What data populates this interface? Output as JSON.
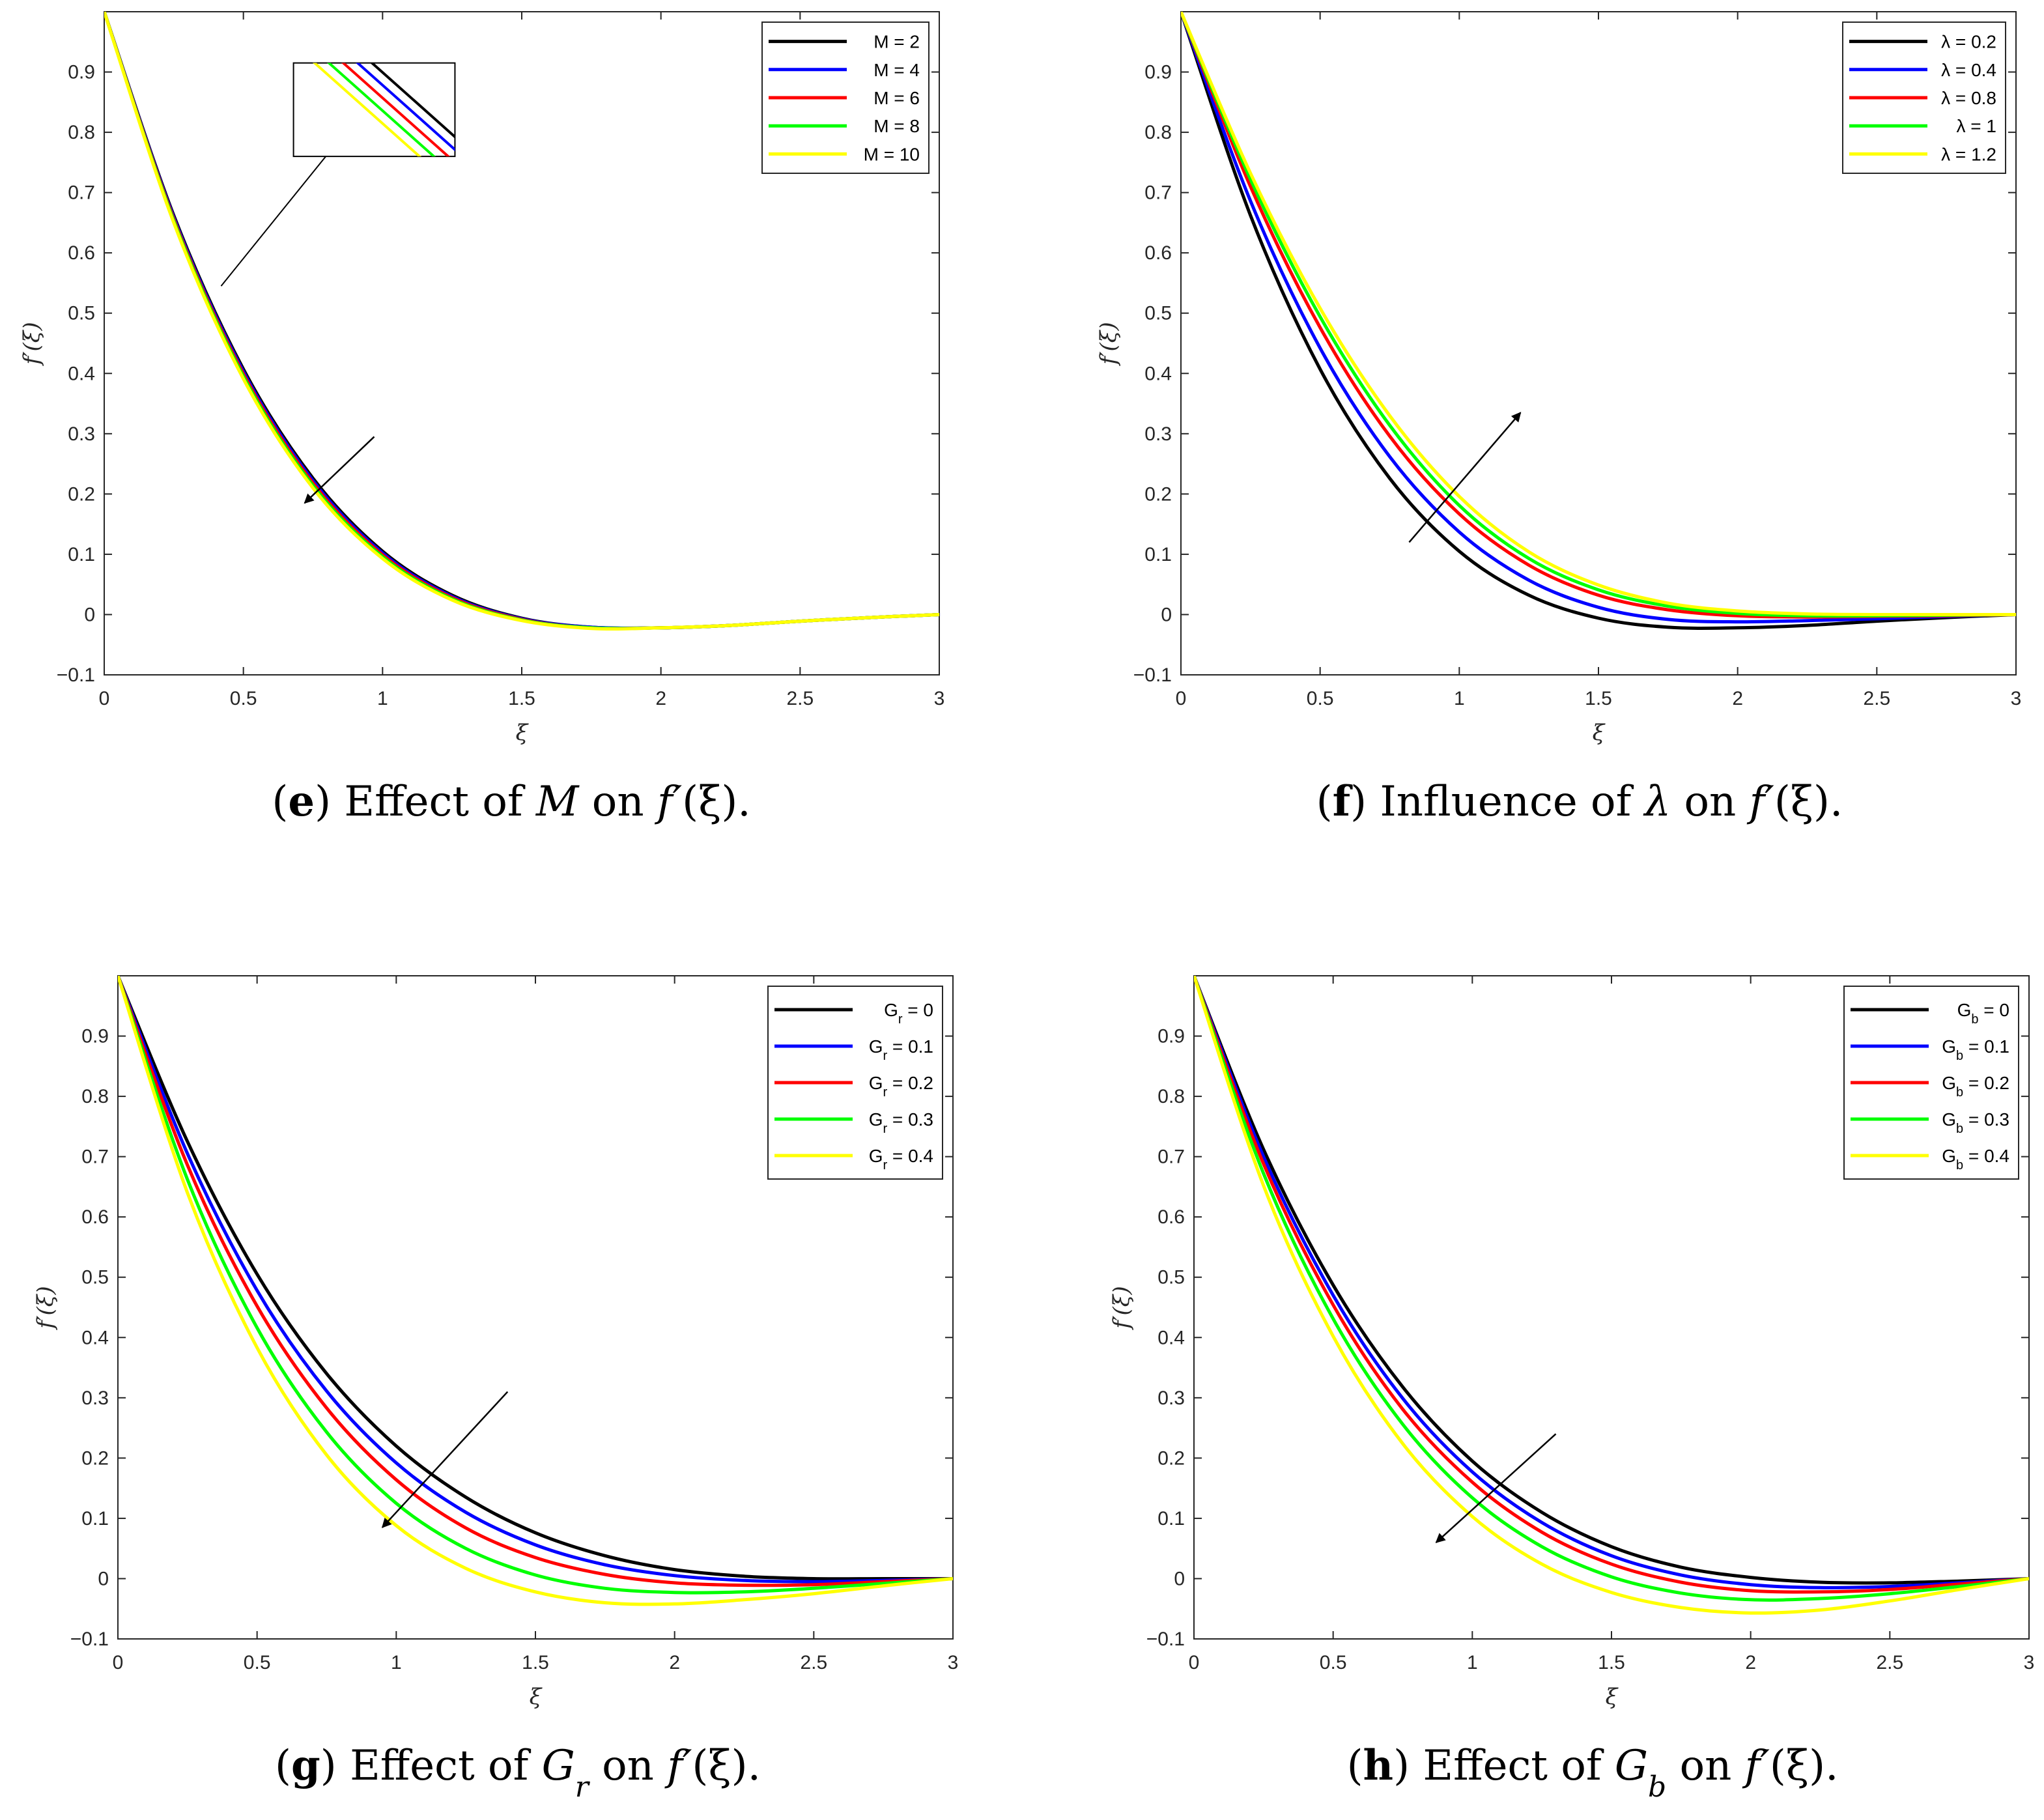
{
  "chart_data": [
    {
      "type": "line",
      "panel": "e",
      "caption": {
        "letter": "e",
        "pre": " Effect of ",
        "sym": "M",
        "sub": "",
        "post": " on ",
        "f": "f",
        "arg": "(ξ)."
      },
      "xlabel": "ξ",
      "ylabel": "f′(ξ)",
      "xlim": [
        0,
        3
      ],
      "ylim": [
        -0.1,
        1.0
      ],
      "xticks": [
        0,
        0.5,
        1,
        1.5,
        2,
        2.5,
        3
      ],
      "xtick_labels": [
        "0",
        "0.5",
        "1",
        "1.5",
        "2",
        "2.5",
        "3"
      ],
      "yticks": [
        -0.1,
        0,
        0.1,
        0.2,
        0.3,
        0.4,
        0.5,
        0.6,
        0.7,
        0.8,
        0.9
      ],
      "ytick_labels": [
        "−0.1",
        "0",
        "0.1",
        "0.2",
        "0.3",
        "0.4",
        "0.5",
        "0.6",
        "0.7",
        "0.8",
        "0.9"
      ],
      "legend_position": "top-right",
      "x": [
        0,
        0.25,
        0.5,
        0.75,
        1,
        1.25,
        1.5,
        1.75,
        2,
        2.25,
        2.5,
        2.75,
        3
      ],
      "series": [
        {
          "legend_sym": "M",
          "legend_sub": "",
          "legend_val": "=  2",
          "color": "#000000",
          "values": [
            1.0,
            0.662,
            0.407,
            0.226,
            0.105,
            0.032,
            -0.006,
            -0.021,
            -0.022,
            -0.018,
            -0.011,
            -0.005,
            0.0
          ]
        },
        {
          "legend_sym": "M",
          "legend_sub": "",
          "legend_val": "=  4",
          "color": "#0000ff",
          "values": [
            1.0,
            0.659,
            0.403,
            0.222,
            0.102,
            0.03,
            -0.007,
            -0.021,
            -0.022,
            -0.018,
            -0.011,
            -0.005,
            0.0
          ]
        },
        {
          "legend_sym": "M",
          "legend_sub": "",
          "legend_val": "=  6",
          "color": "#ff0000",
          "values": [
            1.0,
            0.656,
            0.399,
            0.218,
            0.099,
            0.028,
            -0.008,
            -0.022,
            -0.022,
            -0.018,
            -0.011,
            -0.005,
            0.0
          ]
        },
        {
          "legend_sym": "M",
          "legend_sub": "",
          "legend_val": "=  8",
          "color": "#00ff00",
          "values": [
            1.0,
            0.653,
            0.395,
            0.214,
            0.096,
            0.026,
            -0.009,
            -0.022,
            -0.022,
            -0.018,
            -0.011,
            -0.005,
            0.0
          ]
        },
        {
          "legend_sym": "M",
          "legend_sub": "",
          "legend_val": "= 10",
          "color": "#ffff00",
          "values": [
            1.0,
            0.65,
            0.391,
            0.21,
            0.093,
            0.024,
            -0.01,
            -0.023,
            -0.022,
            -0.018,
            -0.011,
            -0.005,
            0.0
          ]
        }
      ],
      "arrow": {
        "from": [
          0.97,
          0.295
        ],
        "to": [
          0.72,
          0.185
        ]
      },
      "zoom_inset": {
        "target": [
          0.42,
          0.545
        ],
        "xrange": [
          0.68,
          1.26
        ],
        "yrange": [
          0.76,
          0.915
        ]
      }
    },
    {
      "type": "line",
      "panel": "f",
      "caption": {
        "letter": "f",
        "pre": " Influence of ",
        "sym": "λ",
        "sub": "",
        "post": " on ",
        "f": "f",
        "arg": "(ξ)."
      },
      "xlabel": "ξ",
      "ylabel": "f′(ξ)",
      "xlim": [
        0,
        3
      ],
      "ylim": [
        -0.1,
        1.0
      ],
      "xticks": [
        0,
        0.5,
        1,
        1.5,
        2,
        2.5,
        3
      ],
      "xtick_labels": [
        "0",
        "0.5",
        "1",
        "1.5",
        "2",
        "2.5",
        "3"
      ],
      "yticks": [
        -0.1,
        0,
        0.1,
        0.2,
        0.3,
        0.4,
        0.5,
        0.6,
        0.7,
        0.8,
        0.9
      ],
      "ytick_labels": [
        "−0.1",
        "0",
        "0.1",
        "0.2",
        "0.3",
        "0.4",
        "0.5",
        "0.6",
        "0.7",
        "0.8",
        "0.9"
      ],
      "legend_position": "top-right",
      "x": [
        0,
        0.25,
        0.5,
        0.75,
        1,
        1.25,
        1.5,
        1.75,
        2,
        2.25,
        2.5,
        2.75,
        3
      ],
      "series": [
        {
          "legend_sym": "λ",
          "legend_sub": "",
          "legend_val": "= 0.2",
          "color": "#000000",
          "values": [
            1.0,
            0.662,
            0.407,
            0.226,
            0.105,
            0.032,
            -0.006,
            -0.021,
            -0.022,
            -0.018,
            -0.011,
            -0.005,
            0.0
          ]
        },
        {
          "legend_sym": "λ",
          "legend_sub": "",
          "legend_val": "= 0.4",
          "color": "#0000ff",
          "values": [
            1.0,
            0.686,
            0.442,
            0.262,
            0.137,
            0.057,
            0.012,
            -0.008,
            -0.012,
            -0.01,
            -0.007,
            -0.003,
            0.0
          ]
        },
        {
          "legend_sym": "λ",
          "legend_sub": "",
          "legend_val": "= 0.8",
          "color": "#ff0000",
          "values": [
            1.0,
            0.71,
            0.476,
            0.296,
            0.167,
            0.082,
            0.032,
            0.008,
            -0.002,
            -0.004,
            -0.003,
            -0.002,
            0.0
          ]
        },
        {
          "legend_sym": "λ",
          "legend_sub": "",
          "legend_val": "=   1",
          "color": "#00ff00",
          "values": [
            1.0,
            0.722,
            0.494,
            0.314,
            0.181,
            0.093,
            0.041,
            0.014,
            0.002,
            -0.002,
            -0.002,
            -0.001,
            0.0
          ]
        },
        {
          "legend_sym": "λ",
          "legend_sub": "",
          "legend_val": "= 1.2",
          "color": "#ffff00",
          "values": [
            1.0,
            0.732,
            0.508,
            0.33,
            0.196,
            0.104,
            0.049,
            0.019,
            0.006,
            0.001,
            0.0,
            0.0,
            0.0
          ]
        }
      ],
      "arrow": {
        "from": [
          0.82,
          0.12
        ],
        "to": [
          1.22,
          0.335
        ]
      }
    },
    {
      "type": "line",
      "panel": "g",
      "caption": {
        "letter": "g",
        "pre": " Effect of ",
        "sym": "G",
        "sub": "r",
        "post": " on ",
        "f": "f",
        "arg": "(ξ)."
      },
      "xlabel": "ξ",
      "ylabel": "f′(ξ)",
      "xlim": [
        0,
        3
      ],
      "ylim": [
        -0.1,
        1.0
      ],
      "xticks": [
        0,
        0.5,
        1,
        1.5,
        2,
        2.5,
        3
      ],
      "xtick_labels": [
        "0",
        "0.5",
        "1",
        "1.5",
        "2",
        "2.5",
        "3"
      ],
      "yticks": [
        -0.1,
        0,
        0.1,
        0.2,
        0.3,
        0.4,
        0.5,
        0.6,
        0.7,
        0.8,
        0.9
      ],
      "ytick_labels": [
        "−0.1",
        "0",
        "0.1",
        "0.2",
        "0.3",
        "0.4",
        "0.5",
        "0.6",
        "0.7",
        "0.8",
        "0.9"
      ],
      "legend_position": "top-right",
      "x": [
        0,
        0.25,
        0.5,
        0.75,
        1,
        1.25,
        1.5,
        1.75,
        2,
        2.25,
        2.5,
        2.75,
        3
      ],
      "series": [
        {
          "legend_sym": "G",
          "legend_sub": "r",
          "legend_val": "=   0",
          "color": "#000000",
          "values": [
            1.0,
            0.725,
            0.505,
            0.34,
            0.22,
            0.135,
            0.076,
            0.038,
            0.015,
            0.004,
            0.0,
            0.0,
            0.0
          ]
        },
        {
          "legend_sym": "G",
          "legend_sub": "r",
          "legend_val": "= 0.1",
          "color": "#0000ff",
          "values": [
            1.0,
            0.705,
            0.478,
            0.311,
            0.192,
            0.11,
            0.056,
            0.023,
            0.005,
            -0.003,
            -0.005,
            -0.003,
            0.0
          ]
        },
        {
          "legend_sym": "G",
          "legend_sub": "r",
          "legend_val": "= 0.2",
          "color": "#ff0000",
          "values": [
            1.0,
            0.686,
            0.452,
            0.283,
            0.164,
            0.084,
            0.035,
            0.007,
            -0.007,
            -0.011,
            -0.01,
            -0.005,
            0.0
          ]
        },
        {
          "legend_sym": "G",
          "legend_sub": "r",
          "legend_val": "= 0.3",
          "color": "#00ff00",
          "values": [
            1.0,
            0.662,
            0.416,
            0.243,
            0.125,
            0.05,
            0.006,
            -0.016,
            -0.023,
            -0.022,
            -0.016,
            -0.008,
            0.0
          ]
        },
        {
          "legend_sym": "G",
          "legend_sub": "r",
          "legend_val": "= 0.4",
          "color": "#ffff00",
          "values": [
            1.0,
            0.64,
            0.383,
            0.205,
            0.088,
            0.017,
            -0.022,
            -0.04,
            -0.042,
            -0.035,
            -0.025,
            -0.012,
            0.0
          ]
        }
      ],
      "arrow": {
        "from": [
          1.4,
          0.31
        ],
        "to": [
          0.95,
          0.085
        ]
      }
    },
    {
      "type": "line",
      "panel": "h",
      "caption": {
        "letter": "h",
        "pre": " Effect of ",
        "sym": "G",
        "sub": "b",
        "post": " on ",
        "f": "f",
        "arg": "(ξ)."
      },
      "xlabel": "ξ",
      "ylabel": "f′(ξ)",
      "xlim": [
        0,
        3
      ],
      "ylim": [
        -0.1,
        1.0
      ],
      "xticks": [
        0,
        0.5,
        1,
        1.5,
        2,
        2.5,
        3
      ],
      "xtick_labels": [
        "0",
        "0.5",
        "1",
        "1.5",
        "2",
        "2.5",
        "3"
      ],
      "yticks": [
        -0.1,
        0,
        0.1,
        0.2,
        0.3,
        0.4,
        0.5,
        0.6,
        0.7,
        0.8,
        0.9
      ],
      "ytick_labels": [
        "−0.1",
        "0",
        "0.1",
        "0.2",
        "0.3",
        "0.4",
        "0.5",
        "0.6",
        "0.7",
        "0.8",
        "0.9"
      ],
      "legend_position": "top-right",
      "x": [
        0,
        0.25,
        0.5,
        0.75,
        1,
        1.25,
        1.5,
        1.75,
        2,
        2.25,
        2.5,
        2.75,
        3
      ],
      "series": [
        {
          "legend_sym": "G",
          "legend_sub": "b",
          "legend_val": "=   0",
          "color": "#000000",
          "values": [
            1.0,
            0.712,
            0.487,
            0.318,
            0.195,
            0.11,
            0.053,
            0.019,
            0.002,
            -0.006,
            -0.007,
            -0.004,
            0.0
          ]
        },
        {
          "legend_sym": "G",
          "legend_sub": "b",
          "legend_val": "= 0.1",
          "color": "#0000ff",
          "values": [
            1.0,
            0.7,
            0.47,
            0.299,
            0.177,
            0.093,
            0.038,
            0.006,
            -0.01,
            -0.015,
            -0.013,
            -0.007,
            0.0
          ]
        },
        {
          "legend_sym": "G",
          "legend_sub": "b",
          "legend_val": "= 0.2",
          "color": "#ff0000",
          "values": [
            1.0,
            0.688,
            0.454,
            0.281,
            0.16,
            0.077,
            0.024,
            -0.006,
            -0.02,
            -0.022,
            -0.018,
            -0.009,
            0.0
          ]
        },
        {
          "legend_sym": "G",
          "legend_sub": "b",
          "legend_val": "= 0.3",
          "color": "#00ff00",
          "values": [
            1.0,
            0.672,
            0.431,
            0.256,
            0.134,
            0.053,
            0.003,
            -0.024,
            -0.035,
            -0.033,
            -0.025,
            -0.013,
            0.0
          ]
        },
        {
          "legend_sym": "G",
          "legend_sub": "b",
          "legend_val": "= 0.4",
          "color": "#ffff00",
          "values": [
            1.0,
            0.652,
            0.402,
            0.224,
            0.103,
            0.024,
            -0.023,
            -0.048,
            -0.057,
            -0.052,
            -0.037,
            -0.018,
            0.0
          ]
        }
      ],
      "arrow": {
        "from": [
          1.3,
          0.24
        ],
        "to": [
          0.87,
          0.06
        ]
      }
    }
  ]
}
